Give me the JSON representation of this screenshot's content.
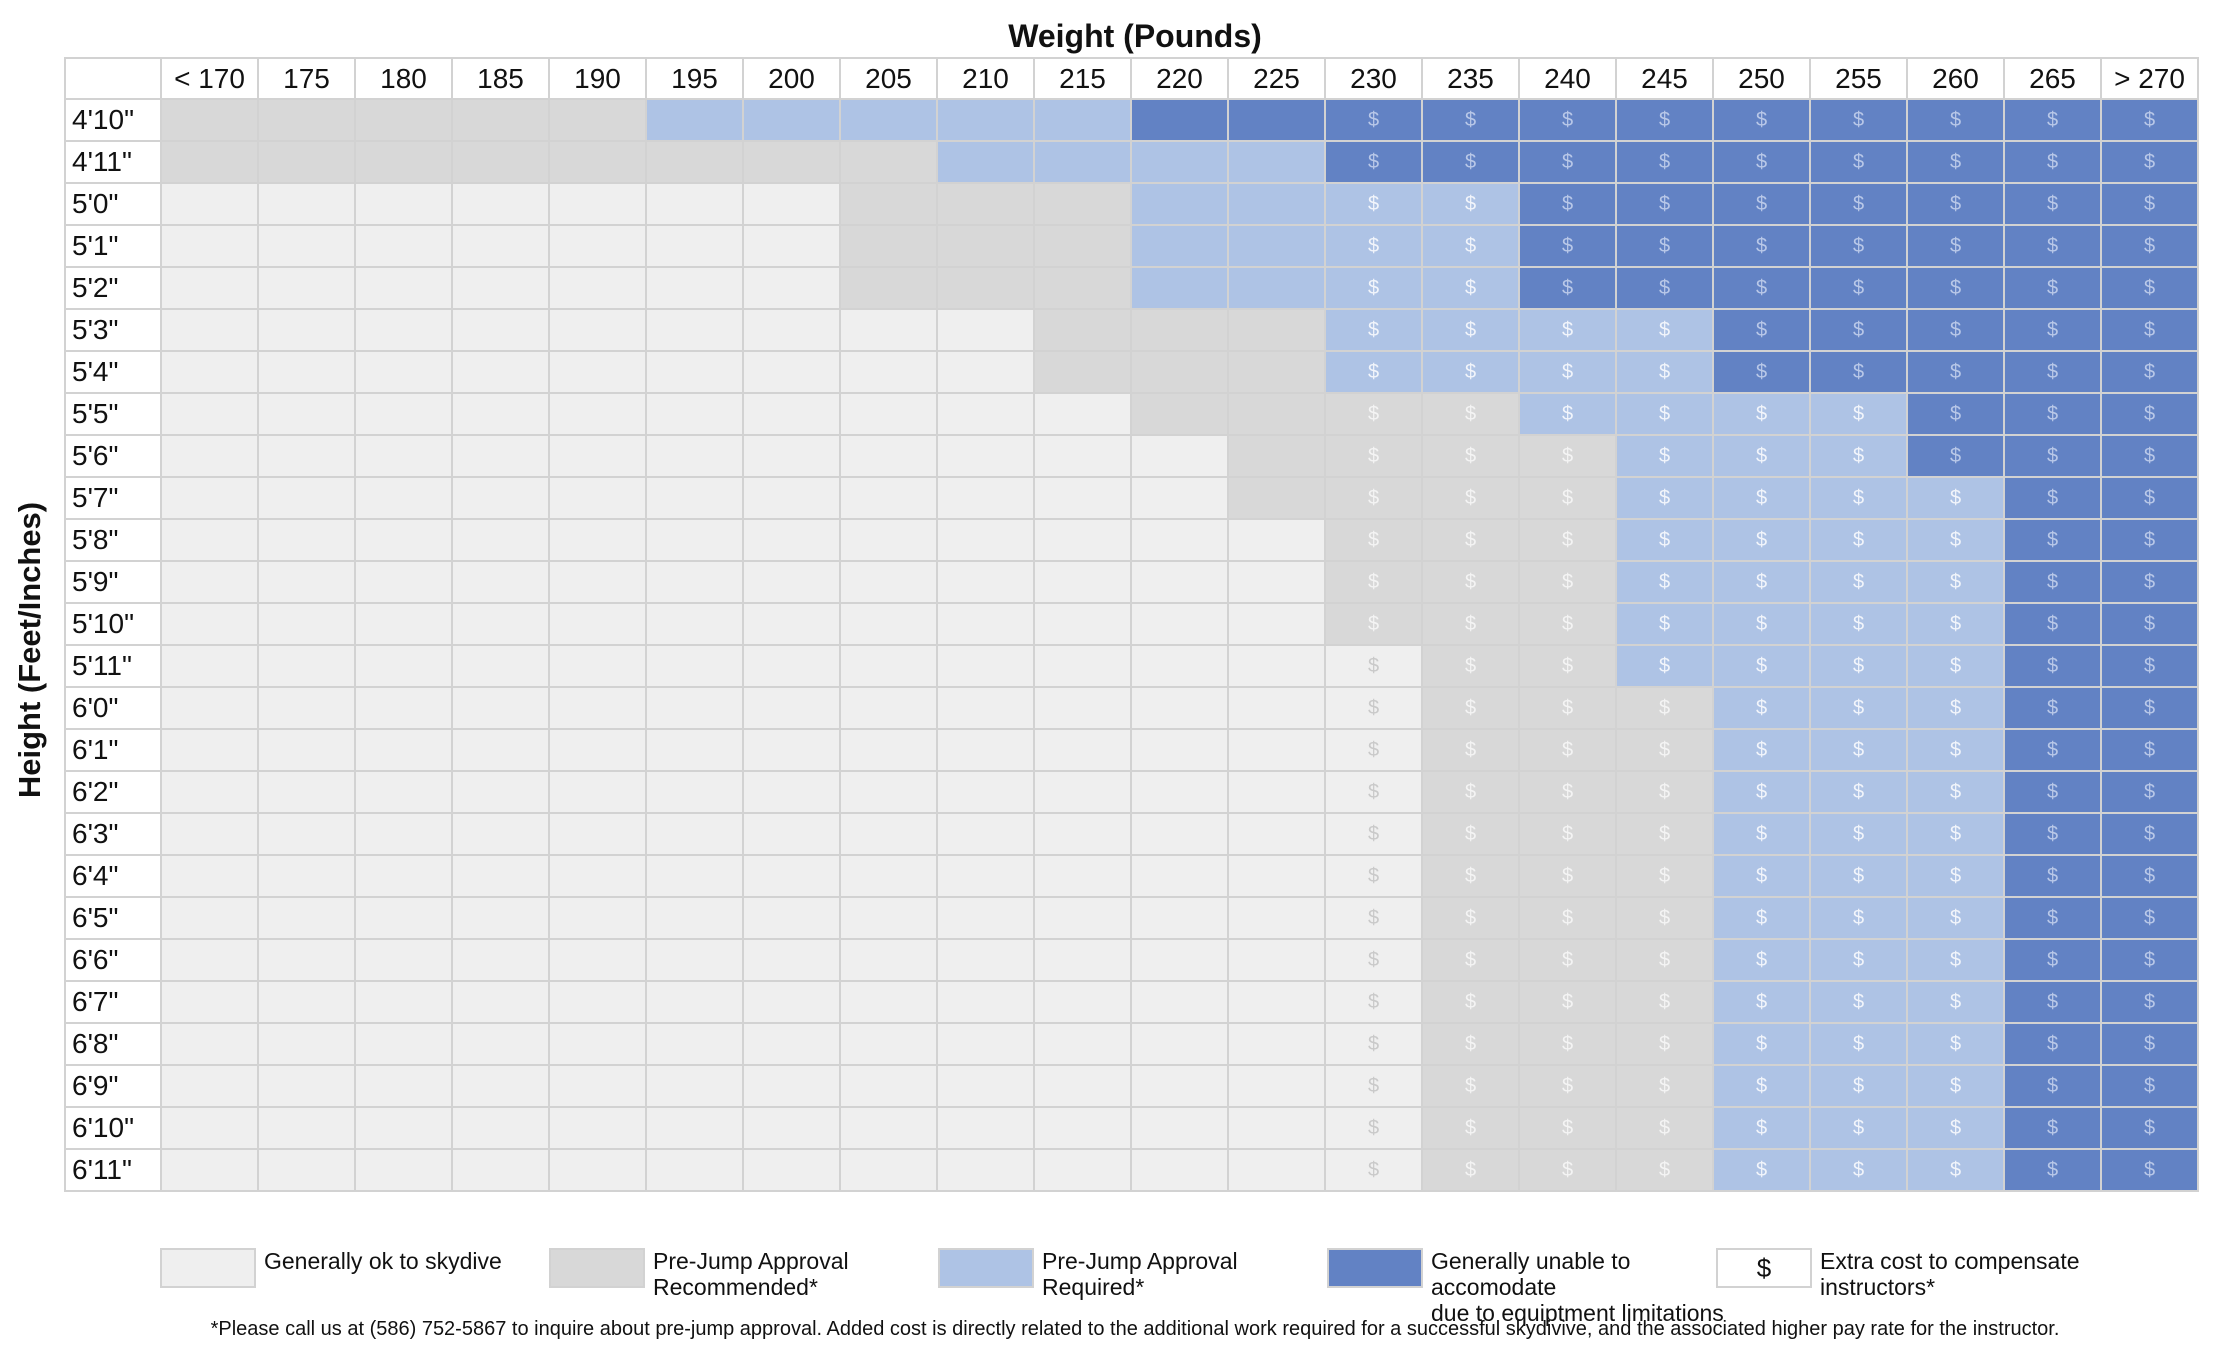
{
  "chart_data": {
    "type": "table",
    "xlabel": "Weight (Pounds)",
    "ylabel": "Height (Feet/Inches)",
    "columns": [
      "< 170",
      "175",
      "180",
      "185",
      "190",
      "195",
      "200",
      "205",
      "210",
      "215",
      "220",
      "225",
      "230",
      "235",
      "240",
      "245",
      "250",
      "255",
      "260",
      "265",
      "> 270"
    ],
    "rows": [
      "4'10\"",
      "4'11\"",
      "5'0\"",
      "5'1\"",
      "5'2\"",
      "5'3\"",
      "5'4\"",
      "5'5\"",
      "5'6\"",
      "5'7\"",
      "5'8\"",
      "5'9\"",
      "5'10\"",
      "5'11\"",
      "6'0\"",
      "6'1\"",
      "6'2\"",
      "6'3\"",
      "6'4\"",
      "6'5\"",
      "6'6\"",
      "6'7\"",
      "6'8\"",
      "6'9\"",
      "6'10\"",
      "6'11\""
    ],
    "cell_symbol": "$",
    "categories": {
      "0": "Generally ok to skydive",
      "1": "Pre-Jump Approval Recommended*",
      "2": "Pre-Jump Approval Required*",
      "3": "Generally unable to accomodate due to equiptment limitations"
    },
    "category_colors": [
      "#efefef",
      "#d8d8d8",
      "#aec3e5",
      "#6282c4"
    ],
    "cells": [
      [
        1,
        1,
        1,
        1,
        1,
        2,
        2,
        2,
        2,
        2,
        3,
        3,
        3,
        3,
        3,
        3,
        3,
        3,
        3,
        3,
        3
      ],
      [
        1,
        1,
        1,
        1,
        1,
        1,
        1,
        1,
        2,
        2,
        2,
        2,
        3,
        3,
        3,
        3,
        3,
        3,
        3,
        3,
        3
      ],
      [
        0,
        0,
        0,
        0,
        0,
        0,
        0,
        1,
        1,
        1,
        2,
        2,
        2,
        2,
        3,
        3,
        3,
        3,
        3,
        3,
        3
      ],
      [
        0,
        0,
        0,
        0,
        0,
        0,
        0,
        1,
        1,
        1,
        2,
        2,
        2,
        2,
        3,
        3,
        3,
        3,
        3,
        3,
        3
      ],
      [
        0,
        0,
        0,
        0,
        0,
        0,
        0,
        1,
        1,
        1,
        2,
        2,
        2,
        2,
        3,
        3,
        3,
        3,
        3,
        3,
        3
      ],
      [
        0,
        0,
        0,
        0,
        0,
        0,
        0,
        0,
        0,
        1,
        1,
        1,
        2,
        2,
        2,
        2,
        3,
        3,
        3,
        3,
        3
      ],
      [
        0,
        0,
        0,
        0,
        0,
        0,
        0,
        0,
        0,
        1,
        1,
        1,
        2,
        2,
        2,
        2,
        3,
        3,
        3,
        3,
        3
      ],
      [
        0,
        0,
        0,
        0,
        0,
        0,
        0,
        0,
        0,
        0,
        1,
        1,
        1,
        1,
        2,
        2,
        2,
        2,
        3,
        3,
        3
      ],
      [
        0,
        0,
        0,
        0,
        0,
        0,
        0,
        0,
        0,
        0,
        0,
        1,
        1,
        1,
        1,
        2,
        2,
        2,
        3,
        3,
        3
      ],
      [
        0,
        0,
        0,
        0,
        0,
        0,
        0,
        0,
        0,
        0,
        0,
        1,
        1,
        1,
        1,
        2,
        2,
        2,
        2,
        3,
        3
      ],
      [
        0,
        0,
        0,
        0,
        0,
        0,
        0,
        0,
        0,
        0,
        0,
        0,
        1,
        1,
        1,
        2,
        2,
        2,
        2,
        3,
        3
      ],
      [
        0,
        0,
        0,
        0,
        0,
        0,
        0,
        0,
        0,
        0,
        0,
        0,
        1,
        1,
        1,
        2,
        2,
        2,
        2,
        3,
        3
      ],
      [
        0,
        0,
        0,
        0,
        0,
        0,
        0,
        0,
        0,
        0,
        0,
        0,
        1,
        1,
        1,
        2,
        2,
        2,
        2,
        3,
        3
      ],
      [
        0,
        0,
        0,
        0,
        0,
        0,
        0,
        0,
        0,
        0,
        0,
        0,
        0,
        1,
        1,
        2,
        2,
        2,
        2,
        3,
        3
      ],
      [
        0,
        0,
        0,
        0,
        0,
        0,
        0,
        0,
        0,
        0,
        0,
        0,
        0,
        1,
        1,
        1,
        2,
        2,
        2,
        3,
        3
      ],
      [
        0,
        0,
        0,
        0,
        0,
        0,
        0,
        0,
        0,
        0,
        0,
        0,
        0,
        1,
        1,
        1,
        2,
        2,
        2,
        3,
        3
      ],
      [
        0,
        0,
        0,
        0,
        0,
        0,
        0,
        0,
        0,
        0,
        0,
        0,
        0,
        1,
        1,
        1,
        2,
        2,
        2,
        3,
        3
      ],
      [
        0,
        0,
        0,
        0,
        0,
        0,
        0,
        0,
        0,
        0,
        0,
        0,
        0,
        1,
        1,
        1,
        2,
        2,
        2,
        3,
        3
      ],
      [
        0,
        0,
        0,
        0,
        0,
        0,
        0,
        0,
        0,
        0,
        0,
        0,
        0,
        1,
        1,
        1,
        2,
        2,
        2,
        3,
        3
      ],
      [
        0,
        0,
        0,
        0,
        0,
        0,
        0,
        0,
        0,
        0,
        0,
        0,
        0,
        1,
        1,
        1,
        2,
        2,
        2,
        3,
        3
      ],
      [
        0,
        0,
        0,
        0,
        0,
        0,
        0,
        0,
        0,
        0,
        0,
        0,
        0,
        1,
        1,
        1,
        2,
        2,
        2,
        3,
        3
      ],
      [
        0,
        0,
        0,
        0,
        0,
        0,
        0,
        0,
        0,
        0,
        0,
        0,
        0,
        1,
        1,
        1,
        2,
        2,
        2,
        3,
        3
      ],
      [
        0,
        0,
        0,
        0,
        0,
        0,
        0,
        0,
        0,
        0,
        0,
        0,
        0,
        1,
        1,
        1,
        2,
        2,
        2,
        3,
        3
      ],
      [
        0,
        0,
        0,
        0,
        0,
        0,
        0,
        0,
        0,
        0,
        0,
        0,
        0,
        1,
        1,
        1,
        2,
        2,
        2,
        3,
        3
      ],
      [
        0,
        0,
        0,
        0,
        0,
        0,
        0,
        0,
        0,
        0,
        0,
        0,
        0,
        1,
        1,
        1,
        2,
        2,
        2,
        3,
        3
      ],
      [
        0,
        0,
        0,
        0,
        0,
        0,
        0,
        0,
        0,
        0,
        0,
        0,
        0,
        1,
        1,
        1,
        2,
        2,
        2,
        3,
        3
      ]
    ],
    "extra_cost_from_column": "230"
  },
  "legend": [
    {
      "color": "#efefef",
      "symbol": "",
      "label": "Generally ok to skydive"
    },
    {
      "color": "#d8d8d8",
      "symbol": "",
      "label": "Pre-Jump Approval\nRecommended*"
    },
    {
      "color": "#aec3e5",
      "symbol": "",
      "label": "Pre-Jump Approval\nRequired*"
    },
    {
      "color": "#6282c4",
      "symbol": "",
      "label": "Generally unable to accomodate\ndue to equiptment limitations"
    },
    {
      "color": "#ffffff",
      "symbol": "$",
      "label": "Extra cost to compensate\ninstructors*"
    }
  ],
  "footnote": "*Please call us at (586) 752-5867 to inquire about pre-jump approval. Added cost is directly related to the additional work required for a successful skydivive, and the associated higher pay rate for the instructor."
}
